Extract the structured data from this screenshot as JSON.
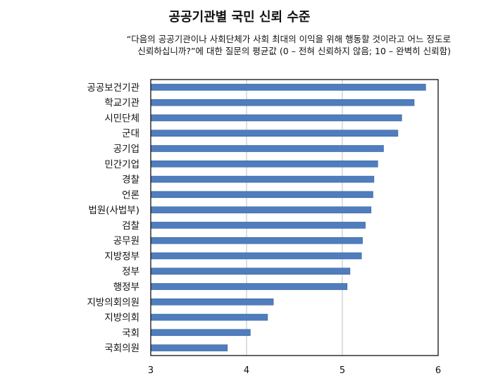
{
  "title": "공공기관별 국민 신뢰 수준",
  "subtitle_lines": [
    "“다음의 공공기관이나 사회단체가 사회 최대의 이익을 위해 행동할 것이라고 어느 정도로",
    "신뢰하십니까?”에 대한 질문의 평균값 (0 – 전혀 신뢰하지 않음; 10 – 완벽히 신뢰함)"
  ],
  "colors": {
    "bar": "#4f7dbd",
    "bar_edge": "#3a649f",
    "grid": "#bfbfbf",
    "frame": "#111111"
  },
  "chart_data": {
    "type": "bar",
    "orientation": "horizontal",
    "title": "공공기관별 국민 신뢰 수준",
    "xlabel": "",
    "ylabel": "",
    "xlim": [
      3,
      6
    ],
    "xticks": [
      "3",
      "4",
      "5",
      "6"
    ],
    "grid": "vertical",
    "categories": [
      "공공보건기관",
      "학교기관",
      "시민단체",
      "군대",
      "공기업",
      "민간기업",
      "경찰",
      "언론",
      "법원(사법부)",
      "검찰",
      "공무원",
      "지방정부",
      "정부",
      "행정부",
      "지방의회의원",
      "지방의회",
      "국회",
      "국회의원"
    ],
    "values": [
      5.87,
      5.75,
      5.62,
      5.58,
      5.43,
      5.37,
      5.33,
      5.32,
      5.3,
      5.24,
      5.21,
      5.2,
      5.08,
      5.05,
      4.28,
      4.22,
      4.04,
      3.8
    ]
  }
}
